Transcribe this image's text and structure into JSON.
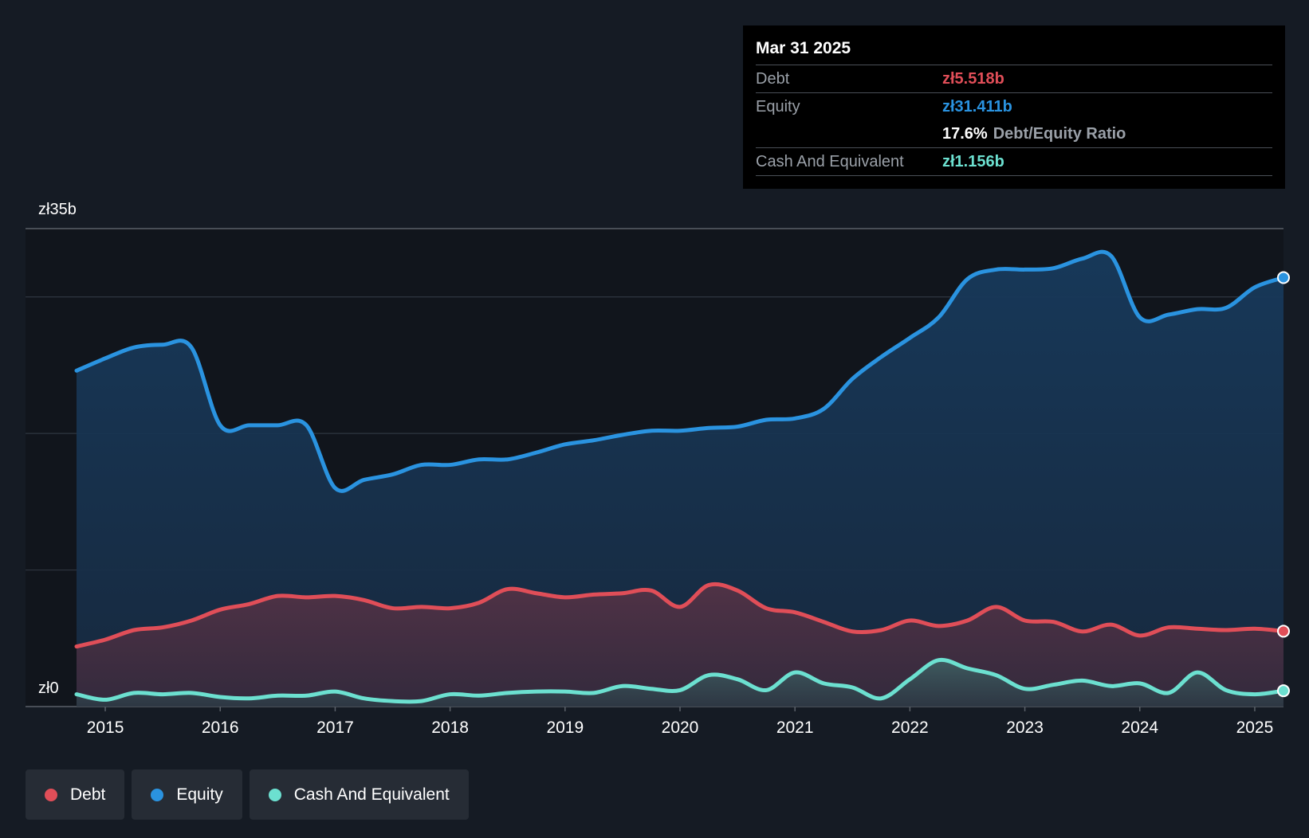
{
  "chart_data": {
    "type": "area",
    "title": "",
    "xlabel": "",
    "ylabel": "",
    "y_axis": {
      "top_label": "zł35b",
      "bottom_label": "zł0",
      "ylim": [
        0,
        35
      ]
    },
    "x_ticks": [
      "2015",
      "2016",
      "2017",
      "2018",
      "2019",
      "2020",
      "2021",
      "2022",
      "2023",
      "2024",
      "2025"
    ],
    "xlim": [
      2014.75,
      2025.25
    ],
    "gridlines": [
      0,
      10,
      20,
      30,
      35
    ],
    "series": [
      {
        "name": "Equity",
        "color": "#2a93e0",
        "points": [
          [
            2014.75,
            24.6
          ],
          [
            2015.0,
            25.5
          ],
          [
            2015.25,
            26.3
          ],
          [
            2015.5,
            26.5
          ],
          [
            2015.75,
            26.3
          ],
          [
            2016.0,
            20.6
          ],
          [
            2016.25,
            20.6
          ],
          [
            2016.5,
            20.6
          ],
          [
            2016.75,
            20.6
          ],
          [
            2017.0,
            16.0
          ],
          [
            2017.25,
            16.6
          ],
          [
            2017.5,
            17.0
          ],
          [
            2017.75,
            17.7
          ],
          [
            2018.0,
            17.7
          ],
          [
            2018.25,
            18.1
          ],
          [
            2018.5,
            18.1
          ],
          [
            2018.75,
            18.6
          ],
          [
            2019.0,
            19.2
          ],
          [
            2019.25,
            19.5
          ],
          [
            2019.5,
            19.9
          ],
          [
            2019.75,
            20.2
          ],
          [
            2020.0,
            20.2
          ],
          [
            2020.25,
            20.4
          ],
          [
            2020.5,
            20.5
          ],
          [
            2020.75,
            21.0
          ],
          [
            2021.0,
            21.1
          ],
          [
            2021.25,
            21.8
          ],
          [
            2021.5,
            24.0
          ],
          [
            2021.75,
            25.6
          ],
          [
            2022.0,
            27.0
          ],
          [
            2022.25,
            28.5
          ],
          [
            2022.5,
            31.3
          ],
          [
            2022.75,
            32.0
          ],
          [
            2023.0,
            32.0
          ],
          [
            2023.25,
            32.1
          ],
          [
            2023.5,
            32.8
          ],
          [
            2023.75,
            33.0
          ],
          [
            2024.0,
            28.5
          ],
          [
            2024.25,
            28.7
          ],
          [
            2024.5,
            29.1
          ],
          [
            2024.75,
            29.2
          ],
          [
            2025.0,
            30.7
          ],
          [
            2025.25,
            31.411
          ]
        ]
      },
      {
        "name": "Debt",
        "color": "#e04e58",
        "points": [
          [
            2014.75,
            4.4
          ],
          [
            2015.0,
            4.9
          ],
          [
            2015.25,
            5.6
          ],
          [
            2015.5,
            5.8
          ],
          [
            2015.75,
            6.3
          ],
          [
            2016.0,
            7.1
          ],
          [
            2016.25,
            7.5
          ],
          [
            2016.5,
            8.1
          ],
          [
            2016.75,
            8.0
          ],
          [
            2017.0,
            8.1
          ],
          [
            2017.25,
            7.8
          ],
          [
            2017.5,
            7.2
          ],
          [
            2017.75,
            7.3
          ],
          [
            2018.0,
            7.2
          ],
          [
            2018.25,
            7.6
          ],
          [
            2018.5,
            8.6
          ],
          [
            2018.75,
            8.3
          ],
          [
            2019.0,
            8.0
          ],
          [
            2019.25,
            8.2
          ],
          [
            2019.5,
            8.3
          ],
          [
            2019.75,
            8.5
          ],
          [
            2020.0,
            7.3
          ],
          [
            2020.25,
            8.9
          ],
          [
            2020.5,
            8.5
          ],
          [
            2020.75,
            7.2
          ],
          [
            2021.0,
            6.9
          ],
          [
            2021.25,
            6.2
          ],
          [
            2021.5,
            5.5
          ],
          [
            2021.75,
            5.6
          ],
          [
            2022.0,
            6.3
          ],
          [
            2022.25,
            5.9
          ],
          [
            2022.5,
            6.3
          ],
          [
            2022.75,
            7.3
          ],
          [
            2023.0,
            6.3
          ],
          [
            2023.25,
            6.2
          ],
          [
            2023.5,
            5.5
          ],
          [
            2023.75,
            6.0
          ],
          [
            2024.0,
            5.2
          ],
          [
            2024.25,
            5.8
          ],
          [
            2024.5,
            5.7
          ],
          [
            2024.75,
            5.6
          ],
          [
            2025.0,
            5.7
          ],
          [
            2025.25,
            5.518
          ]
        ]
      },
      {
        "name": "Cash And Equivalent",
        "color": "#6ce0d0",
        "points": [
          [
            2014.75,
            0.9
          ],
          [
            2015.0,
            0.5
          ],
          [
            2015.25,
            1.0
          ],
          [
            2015.5,
            0.9
          ],
          [
            2015.75,
            1.0
          ],
          [
            2016.0,
            0.7
          ],
          [
            2016.25,
            0.6
          ],
          [
            2016.5,
            0.8
          ],
          [
            2016.75,
            0.8
          ],
          [
            2017.0,
            1.1
          ],
          [
            2017.25,
            0.6
          ],
          [
            2017.5,
            0.4
          ],
          [
            2017.75,
            0.4
          ],
          [
            2018.0,
            0.9
          ],
          [
            2018.25,
            0.8
          ],
          [
            2018.5,
            1.0
          ],
          [
            2018.75,
            1.1
          ],
          [
            2019.0,
            1.1
          ],
          [
            2019.25,
            1.0
          ],
          [
            2019.5,
            1.5
          ],
          [
            2019.75,
            1.3
          ],
          [
            2020.0,
            1.2
          ],
          [
            2020.25,
            2.3
          ],
          [
            2020.5,
            2.0
          ],
          [
            2020.75,
            1.2
          ],
          [
            2021.0,
            2.5
          ],
          [
            2021.25,
            1.7
          ],
          [
            2021.5,
            1.4
          ],
          [
            2021.75,
            0.6
          ],
          [
            2022.0,
            2.0
          ],
          [
            2022.25,
            3.4
          ],
          [
            2022.5,
            2.8
          ],
          [
            2022.75,
            2.3
          ],
          [
            2023.0,
            1.3
          ],
          [
            2023.25,
            1.6
          ],
          [
            2023.5,
            1.9
          ],
          [
            2023.75,
            1.5
          ],
          [
            2024.0,
            1.7
          ],
          [
            2024.25,
            1.0
          ],
          [
            2024.5,
            2.5
          ],
          [
            2024.75,
            1.2
          ],
          [
            2025.0,
            0.9
          ],
          [
            2025.25,
            1.156
          ]
        ]
      }
    ],
    "tooltip": {
      "date": "Mar 31 2025",
      "debt_label": "Debt",
      "debt_value": "zł5.518b",
      "equity_label": "Equity",
      "equity_value": "zł31.411b",
      "ratio_value": "17.6%",
      "ratio_label": "Debt/Equity Ratio",
      "cash_label": "Cash And Equivalent",
      "cash_value": "zł1.156b"
    }
  },
  "legend": [
    {
      "label": "Debt",
      "color": "#e04e58"
    },
    {
      "label": "Equity",
      "color": "#2a93e0"
    },
    {
      "label": "Cash And Equivalent",
      "color": "#6ce0d0"
    }
  ]
}
